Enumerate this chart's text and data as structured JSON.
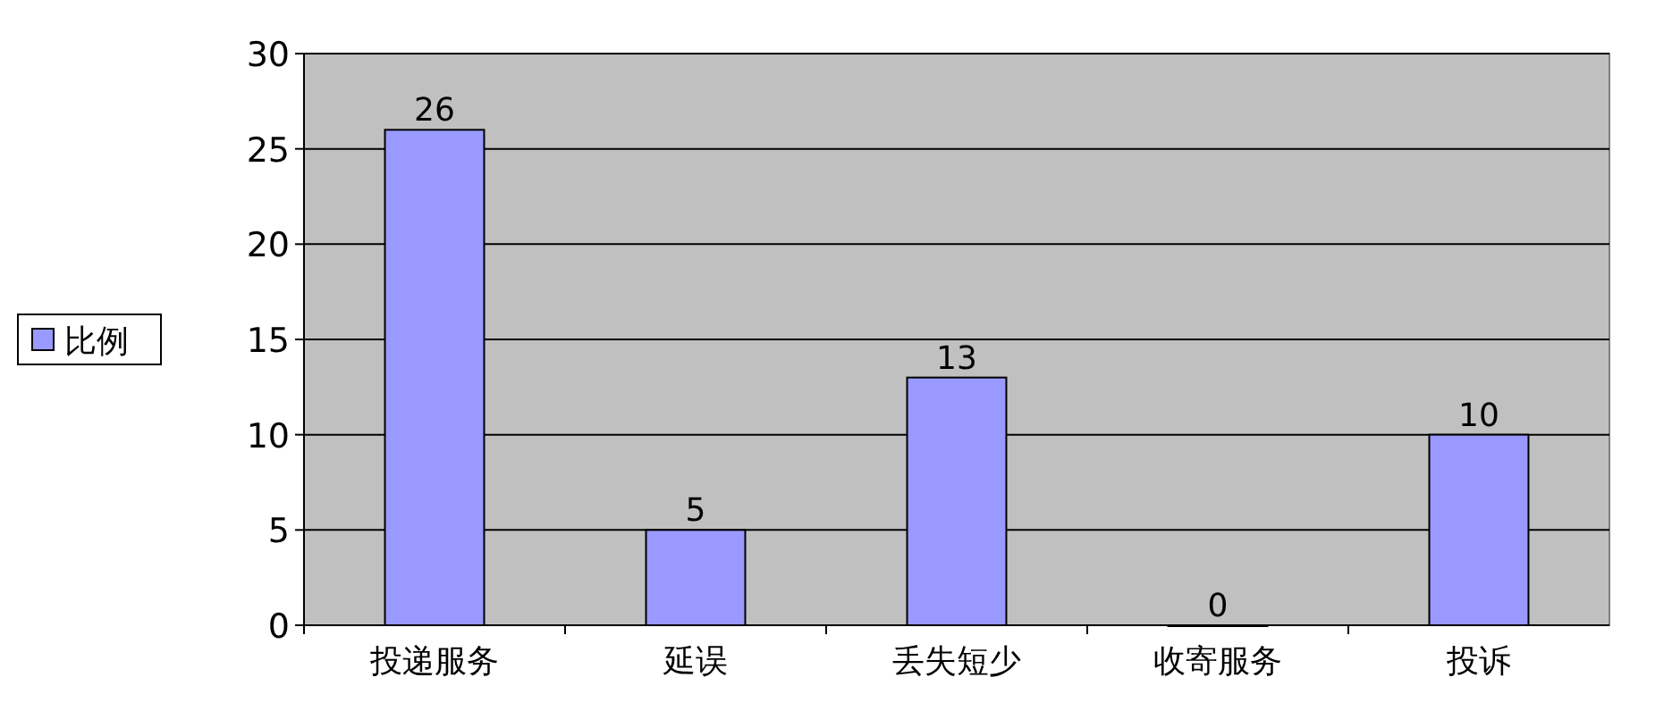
{
  "chart_data": {
    "type": "bar",
    "categories": [
      "投递服务",
      "延误",
      "丢失短少",
      "收寄服务",
      "投诉"
    ],
    "series": [
      {
        "name": "比例",
        "color": "#9999ff",
        "values": [
          26,
          5,
          13,
          0,
          10
        ]
      }
    ],
    "ylim": [
      0,
      30
    ],
    "yticks": [
      0,
      5,
      10,
      15,
      20,
      25,
      30
    ],
    "grid": "y",
    "legend": "left",
    "data_labels": true
  }
}
